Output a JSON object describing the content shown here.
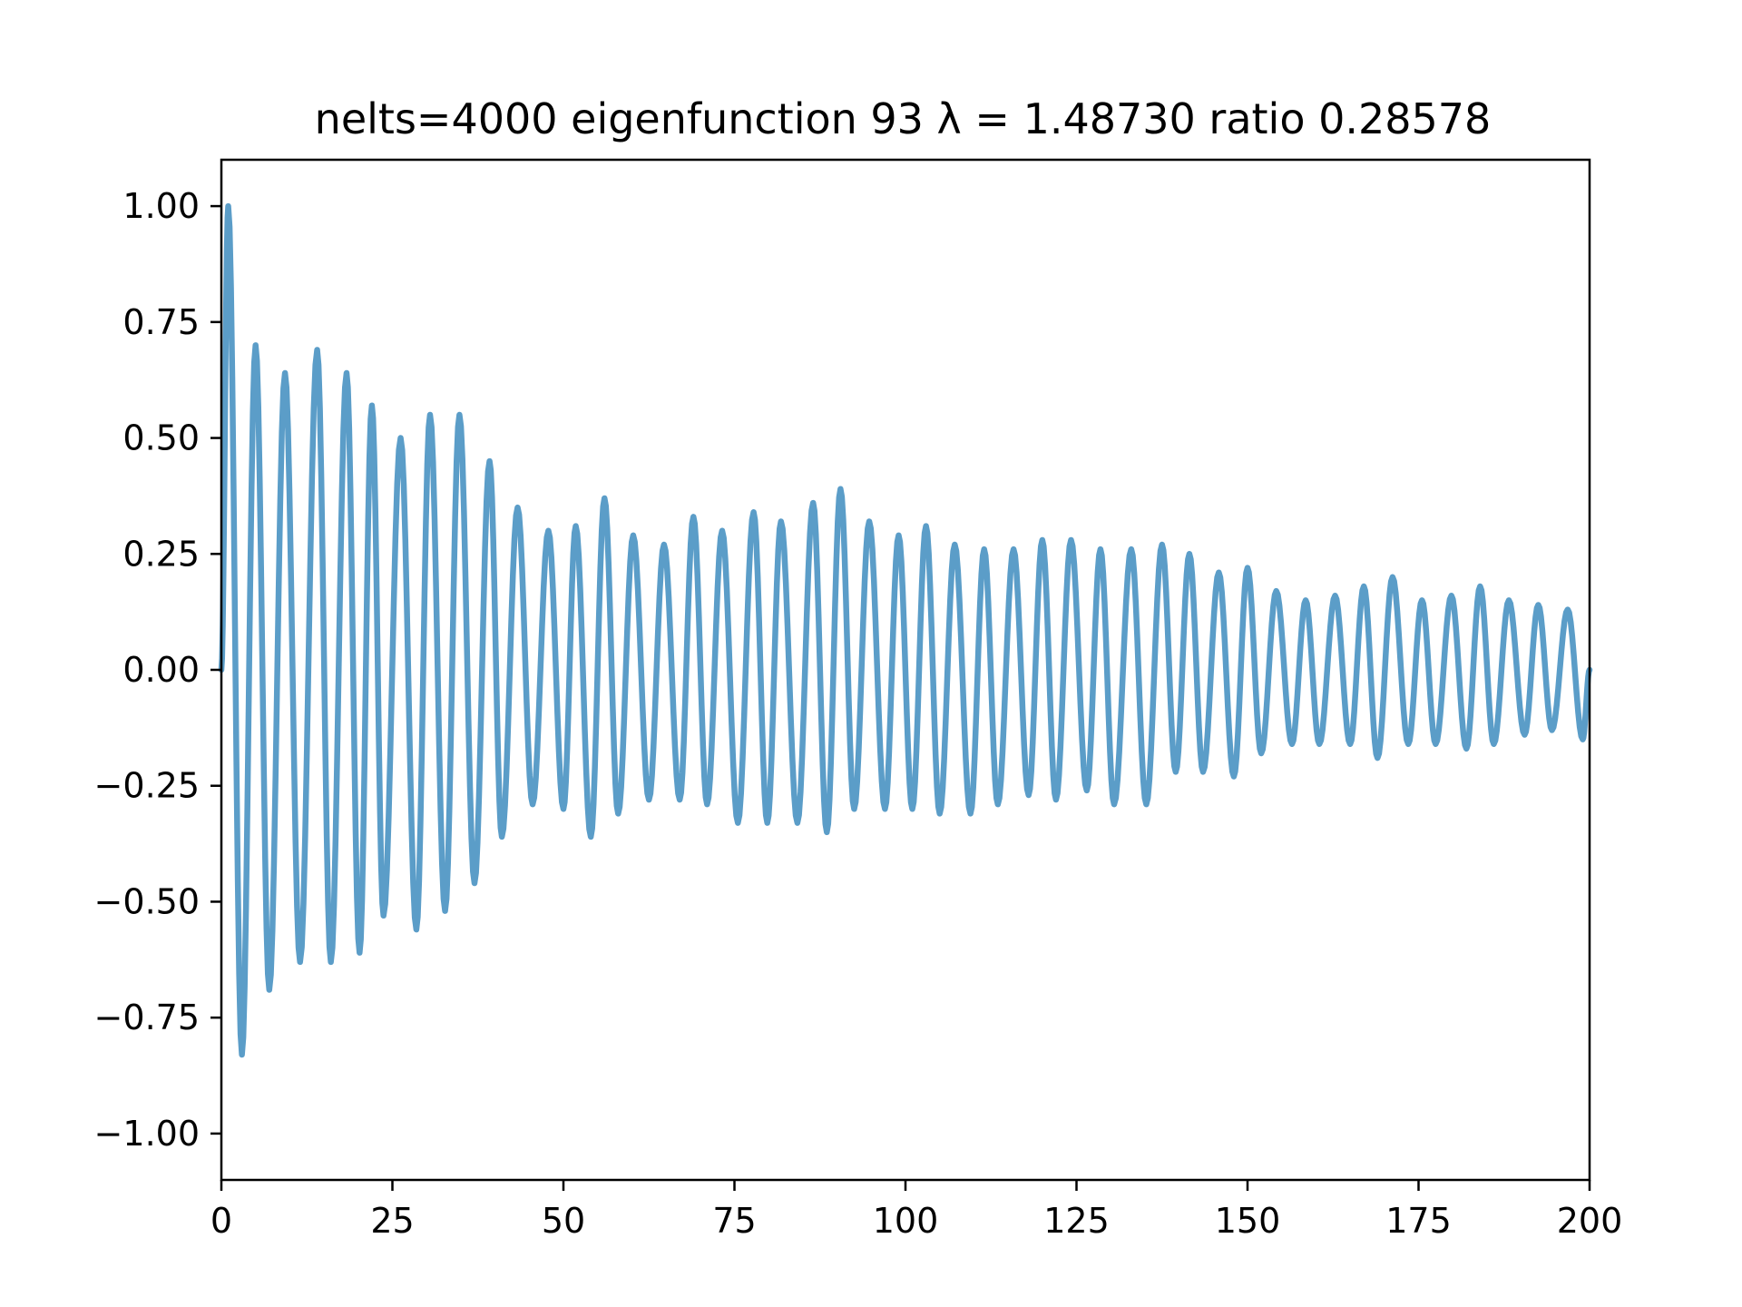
{
  "chart_data": {
    "type": "line",
    "title": "nelts=4000  eigenfunction 93  λ = 1.48730 ratio 0.28578",
    "xlabel": "",
    "ylabel": "",
    "xlim": [
      0,
      200
    ],
    "ylim": [
      -1.1,
      1.1
    ],
    "xticks": [
      0,
      25,
      50,
      75,
      100,
      125,
      150,
      175,
      200
    ],
    "xtick_labels": [
      "0",
      "25",
      "50",
      "75",
      "100",
      "125",
      "150",
      "175",
      "200"
    ],
    "yticks": [
      1.0,
      0.75,
      0.5,
      0.25,
      0.0,
      -0.25,
      -0.5,
      -0.75,
      -1.0
    ],
    "ytick_labels": [
      "1.00",
      "0.75",
      "0.50",
      "0.25",
      "0.00",
      "−0.25",
      "−0.50",
      "−0.75",
      "−1.00"
    ],
    "grid": false,
    "series": [
      {
        "color": "#5b9dc8",
        "extrema": [
          [
            0,
            0.0
          ],
          [
            1,
            1.0
          ],
          [
            3,
            -0.83
          ],
          [
            5,
            0.7
          ],
          [
            7,
            -0.69
          ],
          [
            9.3,
            0.64
          ],
          [
            11.5,
            -0.63
          ],
          [
            14,
            0.69
          ],
          [
            16,
            -0.63
          ],
          [
            18.3,
            0.64
          ],
          [
            20.2,
            -0.61
          ],
          [
            22,
            0.57
          ],
          [
            23.7,
            -0.53
          ],
          [
            26.2,
            0.5
          ],
          [
            28.5,
            -0.56
          ],
          [
            30.5,
            0.55
          ],
          [
            32.7,
            -0.52
          ],
          [
            34.8,
            0.55
          ],
          [
            37,
            -0.46
          ],
          [
            39.2,
            0.45
          ],
          [
            41,
            -0.36
          ],
          [
            43.3,
            0.35
          ],
          [
            45.5,
            -0.29
          ],
          [
            47.8,
            0.3
          ],
          [
            50,
            -0.3
          ],
          [
            51.8,
            0.31
          ],
          [
            54,
            -0.36
          ],
          [
            56,
            0.37
          ],
          [
            58,
            -0.31
          ],
          [
            60.2,
            0.29
          ],
          [
            62.5,
            -0.28
          ],
          [
            64.7,
            0.27
          ],
          [
            67,
            -0.28
          ],
          [
            69,
            0.33
          ],
          [
            71,
            -0.29
          ],
          [
            73.2,
            0.3
          ],
          [
            75.5,
            -0.33
          ],
          [
            77.8,
            0.34
          ],
          [
            79.8,
            -0.33
          ],
          [
            81.8,
            0.32
          ],
          [
            84.2,
            -0.33
          ],
          [
            86.5,
            0.36
          ],
          [
            88.5,
            -0.35
          ],
          [
            90.5,
            0.39
          ],
          [
            92.5,
            -0.3
          ],
          [
            94.7,
            0.32
          ],
          [
            97,
            -0.3
          ],
          [
            99,
            0.29
          ],
          [
            101,
            -0.3
          ],
          [
            103,
            0.31
          ],
          [
            105,
            -0.31
          ],
          [
            107.2,
            0.27
          ],
          [
            109.5,
            -0.31
          ],
          [
            111.5,
            0.26
          ],
          [
            113.5,
            -0.29
          ],
          [
            115.8,
            0.26
          ],
          [
            118,
            -0.27
          ],
          [
            120,
            0.28
          ],
          [
            122,
            -0.28
          ],
          [
            124.2,
            0.28
          ],
          [
            126.5,
            -0.26
          ],
          [
            128.5,
            0.26
          ],
          [
            130.5,
            -0.29
          ],
          [
            133,
            0.26
          ],
          [
            135.2,
            -0.29
          ],
          [
            137.5,
            0.27
          ],
          [
            139.5,
            -0.22
          ],
          [
            141.5,
            0.25
          ],
          [
            143.5,
            -0.22
          ],
          [
            145.8,
            0.21
          ],
          [
            148,
            -0.23
          ],
          [
            150,
            0.22
          ],
          [
            152,
            -0.18
          ],
          [
            154.2,
            0.17
          ],
          [
            156.5,
            -0.16
          ],
          [
            158.5,
            0.15
          ],
          [
            160.5,
            -0.16
          ],
          [
            162.8,
            0.16
          ],
          [
            165,
            -0.16
          ],
          [
            167,
            0.18
          ],
          [
            169,
            -0.19
          ],
          [
            171.2,
            0.2
          ],
          [
            173.5,
            -0.16
          ],
          [
            175.5,
            0.15
          ],
          [
            177.5,
            -0.16
          ],
          [
            179.8,
            0.16
          ],
          [
            182,
            -0.17
          ],
          [
            184,
            0.18
          ],
          [
            186,
            -0.16
          ],
          [
            188.2,
            0.15
          ],
          [
            190.5,
            -0.14
          ],
          [
            192.5,
            0.14
          ],
          [
            194.5,
            -0.13
          ],
          [
            196.8,
            0.13
          ],
          [
            199,
            -0.15
          ],
          [
            200,
            0.0
          ]
        ]
      }
    ]
  }
}
